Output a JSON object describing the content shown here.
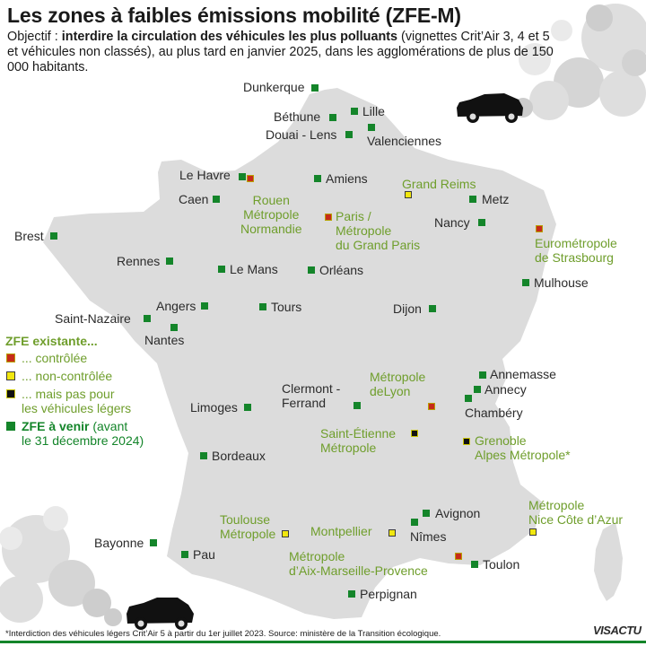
{
  "title": "Les zones à faibles émissions mobilité (ZFE-M)",
  "subtitle": {
    "prefix": "Objectif : ",
    "bold": "interdire la circulation des véhicules les plus polluants",
    "rest": " (vignettes Crit’Air 3, 4 et 5 et véhicules non classés), au plus tard en janvier 2025, dans les agglomérations de plus de 150 000 habitants."
  },
  "colors": {
    "land": "#dcdcdc",
    "future": "#14852a",
    "existing_text": "#6f9e2c",
    "controlled": "#c62b1a",
    "uncontrolled": "#f1e70f",
    "not_light_vehicles": "#111111"
  },
  "cities": [
    {
      "id": "dunkerque",
      "type": "future",
      "lines": [
        "Dunkerque"
      ]
    },
    {
      "id": "lille",
      "type": "future",
      "lines": [
        "Lille"
      ]
    },
    {
      "id": "bethune",
      "type": "future",
      "lines": [
        "Béthune"
      ]
    },
    {
      "id": "douai-lens",
      "type": "future",
      "lines": [
        "Douai - Lens"
      ]
    },
    {
      "id": "valenciennes",
      "type": "future",
      "lines": [
        "Valenciennes"
      ]
    },
    {
      "id": "le-havre",
      "type": "future",
      "lines": [
        "Le Havre"
      ]
    },
    {
      "id": "amiens",
      "type": "future",
      "lines": [
        "Amiens"
      ]
    },
    {
      "id": "caen",
      "type": "future",
      "lines": [
        "Caen"
      ]
    },
    {
      "id": "rouen",
      "type": "controlled",
      "lines": [
        "Rouen",
        "Métropole",
        "Normandie"
      ]
    },
    {
      "id": "grand-reims",
      "type": "uncontrolled",
      "lines": [
        "Grand Reims"
      ]
    },
    {
      "id": "metz",
      "type": "future",
      "lines": [
        "Metz"
      ]
    },
    {
      "id": "paris",
      "type": "controlled",
      "lines": [
        "Paris /",
        "Métropole",
        "du Grand Paris"
      ]
    },
    {
      "id": "nancy",
      "type": "future",
      "lines": [
        "Nancy"
      ]
    },
    {
      "id": "strasbourg",
      "type": "controlled",
      "lines": [
        "Eurométropole",
        "de Strasbourg"
      ]
    },
    {
      "id": "brest",
      "type": "future",
      "lines": [
        "Brest"
      ]
    },
    {
      "id": "rennes",
      "type": "future",
      "lines": [
        "Rennes"
      ]
    },
    {
      "id": "le-mans",
      "type": "future",
      "lines": [
        "Le Mans"
      ]
    },
    {
      "id": "orleans",
      "type": "future",
      "lines": [
        "Orléans"
      ]
    },
    {
      "id": "mulhouse",
      "type": "future",
      "lines": [
        "Mulhouse"
      ]
    },
    {
      "id": "angers",
      "type": "future",
      "lines": [
        "Angers"
      ]
    },
    {
      "id": "tours",
      "type": "future",
      "lines": [
        "Tours"
      ]
    },
    {
      "id": "dijon",
      "type": "future",
      "lines": [
        "Dijon"
      ]
    },
    {
      "id": "saint-nazaire",
      "type": "future",
      "lines": [
        "Saint-Nazaire"
      ]
    },
    {
      "id": "nantes",
      "type": "future",
      "lines": [
        "Nantes"
      ]
    },
    {
      "id": "annemasse",
      "type": "future",
      "lines": [
        "Annemasse"
      ]
    },
    {
      "id": "annecy",
      "type": "future",
      "lines": [
        "Annecy"
      ]
    },
    {
      "id": "chambery",
      "type": "future",
      "lines": [
        "Chambéry"
      ]
    },
    {
      "id": "lyon",
      "type": "controlled",
      "lines": [
        "Métropole",
        "deLyon"
      ]
    },
    {
      "id": "clermont",
      "type": "future",
      "lines": [
        "Clermont -",
        "Ferrand"
      ]
    },
    {
      "id": "limoges",
      "type": "future",
      "lines": [
        "Limoges"
      ]
    },
    {
      "id": "saint-etienne",
      "type": "not_light_vehicles",
      "lines": [
        "Saint-Étienne",
        "Métropole"
      ]
    },
    {
      "id": "grenoble",
      "type": "not_light_vehicles",
      "lines": [
        "Grenoble",
        "Alpes Métropole*"
      ]
    },
    {
      "id": "bordeaux",
      "type": "future",
      "lines": [
        "Bordeaux"
      ]
    },
    {
      "id": "avignon",
      "type": "future",
      "lines": [
        "Avignon"
      ]
    },
    {
      "id": "nice",
      "type": "uncontrolled",
      "lines": [
        "Métropole",
        "Nice Côte d’Azur"
      ]
    },
    {
      "id": "toulouse",
      "type": "uncontrolled",
      "lines": [
        "Toulouse",
        "Métropole"
      ]
    },
    {
      "id": "montpellier",
      "type": "uncontrolled",
      "lines": [
        "Montpellier"
      ]
    },
    {
      "id": "nimes",
      "type": "future",
      "lines": [
        "Nîmes"
      ]
    },
    {
      "id": "bayonne",
      "type": "future",
      "lines": [
        "Bayonne"
      ]
    },
    {
      "id": "pau",
      "type": "future",
      "lines": [
        "Pau"
      ]
    },
    {
      "id": "aix-marseille",
      "type": "controlled",
      "lines": [
        "Métropole",
        "d’Aix-Marseille-Provence"
      ]
    },
    {
      "id": "toulon",
      "type": "future",
      "lines": [
        "Toulon"
      ]
    },
    {
      "id": "perpignan",
      "type": "future",
      "lines": [
        "Perpignan"
      ]
    }
  ],
  "legend": {
    "title": "ZFE existante...",
    "controlled": "... contrôlée",
    "uncontrolled": "... non-contrôlée",
    "not_light_line1": "... mais pas pour",
    "not_light_line2": "les véhicules légers",
    "future_bold": "ZFE à venir",
    "future_rest1": " (avant",
    "future_rest2": "le 31 décembre 2024)"
  },
  "footnote": "*Interdiction des véhicules légers Crit’Air 5 à partir du 1er juillet 2023.  Source: ministère de la Transition écologique.",
  "brand": "VISACTU"
}
